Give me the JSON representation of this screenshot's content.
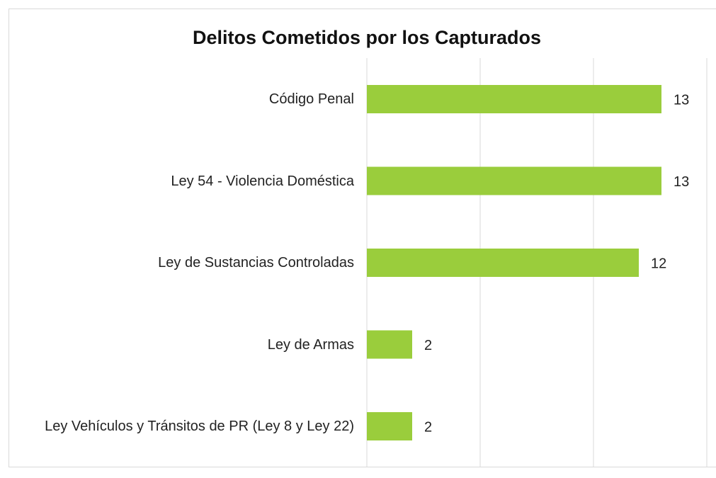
{
  "chart_data": {
    "type": "bar",
    "orientation": "horizontal",
    "title": "Delitos Cometidos por los Capturados",
    "categories": [
      "Código Penal",
      "Ley 54 - Violencia Doméstica",
      "Ley de Sustancias Controladas",
      "Ley de Armas",
      "Ley Vehículos y Tránsitos de PR (Ley 8 y Ley 22)"
    ],
    "values": [
      13,
      13,
      12,
      2,
      2
    ],
    "color": "#9acd3c",
    "xlim": [
      0,
      15
    ],
    "xticks": [
      0,
      5,
      10,
      15
    ],
    "grid": true
  }
}
